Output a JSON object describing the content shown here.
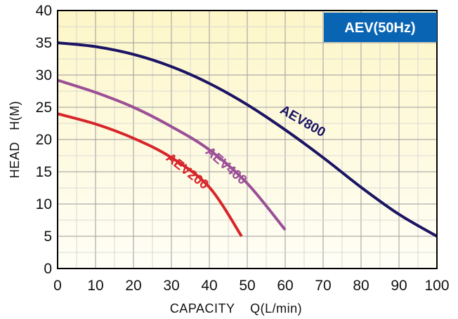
{
  "chart_data": {
    "type": "line",
    "title": "AEV(50Hz)",
    "xlabel": "CAPACITY    Q(L/min)",
    "ylabel": "HEAD   H(M)",
    "xlim": [
      0,
      100
    ],
    "ylim": [
      0,
      40
    ],
    "x_ticks": [
      "0",
      "10",
      "20",
      "30",
      "40",
      "50",
      "60",
      "70",
      "80",
      "90",
      "100"
    ],
    "y_ticks": [
      "0",
      "5",
      "10",
      "15",
      "20",
      "25",
      "30",
      "35",
      "40"
    ],
    "grid": true,
    "series": [
      {
        "name": "AEV800",
        "color": "#1b1464",
        "points": [
          [
            0,
            35
          ],
          [
            10,
            34.4
          ],
          [
            20,
            33.2
          ],
          [
            30,
            31.3
          ],
          [
            40,
            28.7
          ],
          [
            50,
            25.4
          ],
          [
            60,
            21.5
          ],
          [
            70,
            17.2
          ],
          [
            80,
            12.6
          ],
          [
            90,
            8.4
          ],
          [
            100,
            5
          ]
        ]
      },
      {
        "name": "AEV400",
        "color": "#9b4f96",
        "points": [
          [
            0,
            29.2
          ],
          [
            10,
            27.3
          ],
          [
            20,
            25
          ],
          [
            30,
            22
          ],
          [
            40,
            18.4
          ],
          [
            50,
            13.2
          ],
          [
            60,
            6
          ]
        ]
      },
      {
        "name": "AEV200",
        "color": "#d7262b",
        "points": [
          [
            0,
            24
          ],
          [
            10,
            22.4
          ],
          [
            20,
            20.2
          ],
          [
            30,
            17.2
          ],
          [
            40,
            12.6
          ],
          [
            48.5,
            5
          ]
        ]
      }
    ],
    "background_gradient": [
      "#fdf6c8",
      "#fffef6"
    ]
  }
}
